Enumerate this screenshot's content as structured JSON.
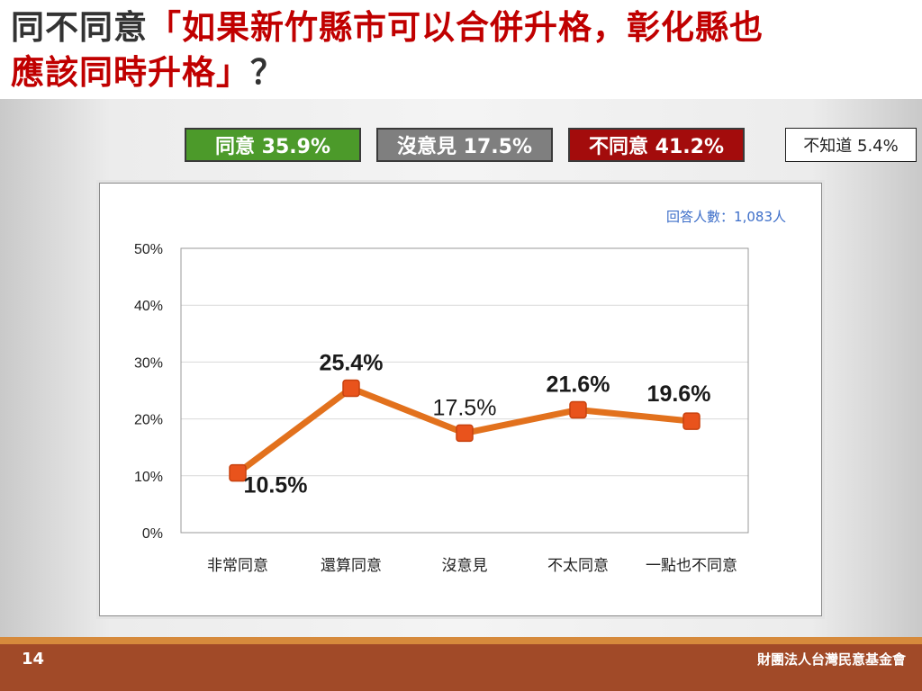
{
  "title": {
    "lead": "同不同意",
    "highlight_line1": "「如果新竹縣市可以合併升格，彰化縣也",
    "highlight_line2": "應該同時升格」",
    "tail": "？"
  },
  "summary": {
    "agree": "同意 35.9%",
    "neutral": "沒意見 17.5%",
    "disagree": "不同意 41.2%",
    "unknown": "不知道 5.4%"
  },
  "colors": {
    "agree": "#4c9a2a",
    "neutral": "#7f7f7f",
    "disagree": "#a30c0c",
    "line": "#e2711d",
    "marker": "#e9531c",
    "sample_text": "#3e6fc9",
    "footer": "#a14a28",
    "footer_band": "#d68a3c"
  },
  "chart_data": {
    "type": "line",
    "sample_note": "回答人數：1,083人",
    "categories": [
      "非常同意",
      "還算同意",
      "沒意見",
      "不太同意",
      "一點也不同意"
    ],
    "values": [
      10.5,
      25.4,
      17.5,
      21.6,
      19.6
    ],
    "data_labels": [
      "10.5%",
      "25.4%",
      "17.5%",
      "21.6%",
      "19.6%"
    ],
    "y_ticks": [
      "0%",
      "10%",
      "20%",
      "30%",
      "40%",
      "50%"
    ],
    "ylim": [
      0,
      50
    ],
    "grid": true
  },
  "footer": {
    "page_number": "14",
    "organization": "財團法人台灣民意基金會"
  }
}
